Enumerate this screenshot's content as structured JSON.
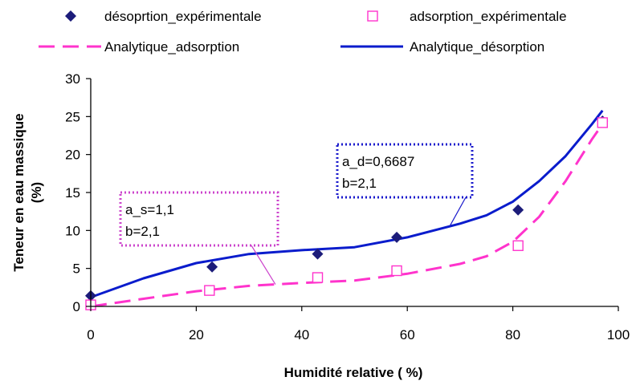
{
  "chart_data": {
    "type": "line",
    "title": "",
    "xlabel": "Humidité relative ( %)",
    "ylabel_line1": "Teneur en eau massique",
    "ylabel_line2": "(%)",
    "xlim": [
      0,
      100
    ],
    "ylim": [
      0,
      30
    ],
    "xticks": [
      "0",
      "20",
      "40",
      "60",
      "80",
      "100"
    ],
    "yticks": [
      "0",
      "5",
      "10",
      "15",
      "20",
      "25",
      "30"
    ],
    "grid": false,
    "legend_position": "top",
    "series": [
      {
        "name": "désoprtion_expérimentale",
        "kind": "scatter",
        "marker": "diamond",
        "color": "#1c1c7a",
        "x": [
          0,
          23,
          43,
          58,
          81,
          97
        ],
        "y": [
          1.4,
          5.2,
          6.9,
          9.1,
          12.7,
          24.4
        ]
      },
      {
        "name": "adsorption_expérimentale",
        "kind": "scatter",
        "marker": "open-square",
        "color": "#ff33cc",
        "x": [
          0,
          22.5,
          43,
          58,
          81,
          97
        ],
        "y": [
          0.2,
          2.1,
          3.8,
          4.7,
          8.0,
          24.2
        ]
      },
      {
        "name": "Analytique_adsorption",
        "kind": "line",
        "style": "dashed",
        "color": "#ff33cc",
        "x": [
          0,
          10,
          20,
          30,
          40,
          50,
          60,
          70,
          75,
          80,
          85,
          90,
          95,
          97
        ],
        "y": [
          0,
          1.0,
          2.0,
          2.7,
          3.1,
          3.4,
          4.3,
          5.6,
          6.6,
          8.5,
          11.8,
          16.5,
          22.0,
          24.0
        ]
      },
      {
        "name": "Analytique_désorption",
        "kind": "line",
        "style": "solid",
        "color": "#0a1ccc",
        "x": [
          0,
          10,
          20,
          30,
          40,
          50,
          60,
          70,
          75,
          80,
          85,
          90,
          95,
          97
        ],
        "y": [
          1.2,
          3.7,
          5.7,
          6.9,
          7.4,
          7.8,
          9.1,
          10.9,
          12.0,
          13.8,
          16.5,
          19.8,
          24.0,
          25.8
        ]
      }
    ],
    "annotations": [
      {
        "lines": [
          "a_s=1,1",
          "b=2,1"
        ],
        "color": "#cc44cc",
        "border": "dotted",
        "points_to": [
          35,
          2.9
        ]
      },
      {
        "lines": [
          "a_d=0,6687",
          "b=2,1"
        ],
        "color": "#1a1acc",
        "border": "dotted",
        "points_to": [
          68,
          10.5
        ]
      }
    ]
  }
}
